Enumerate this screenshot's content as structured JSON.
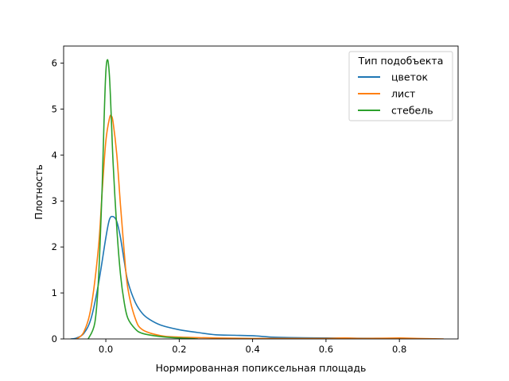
{
  "chart_data": {
    "type": "line",
    "xlabel": "Нормированная попиксельная площадь",
    "ylabel": "Плотность",
    "xlim": [
      -0.115,
      0.96
    ],
    "ylim": [
      0,
      6.37
    ],
    "x_ticks": [
      0.0,
      0.2,
      0.4,
      0.6,
      0.8
    ],
    "x_tick_labels": [
      "0.0",
      "0.2",
      "0.4",
      "0.6",
      "0.8"
    ],
    "y_ticks": [
      0,
      1,
      2,
      3,
      4,
      5,
      6
    ],
    "y_tick_labels": [
      "0",
      "1",
      "2",
      "3",
      "4",
      "5",
      "6"
    ],
    "grid": false,
    "legend": {
      "title": "Тип подобъекта",
      "position": "top-right"
    },
    "series": [
      {
        "name": "цветок",
        "color": "#1f77b4",
        "points": [
          [
            -0.095,
            0.0
          ],
          [
            -0.08,
            0.02
          ],
          [
            -0.06,
            0.12
          ],
          [
            -0.04,
            0.45
          ],
          [
            -0.02,
            1.2
          ],
          [
            0.0,
            2.2
          ],
          [
            0.01,
            2.6
          ],
          [
            0.02,
            2.66
          ],
          [
            0.03,
            2.55
          ],
          [
            0.04,
            2.2
          ],
          [
            0.05,
            1.7
          ],
          [
            0.06,
            1.25
          ],
          [
            0.08,
            0.8
          ],
          [
            0.1,
            0.55
          ],
          [
            0.12,
            0.42
          ],
          [
            0.15,
            0.3
          ],
          [
            0.2,
            0.2
          ],
          [
            0.25,
            0.14
          ],
          [
            0.3,
            0.09
          ],
          [
            0.35,
            0.08
          ],
          [
            0.4,
            0.07
          ],
          [
            0.45,
            0.04
          ],
          [
            0.5,
            0.03
          ],
          [
            0.6,
            0.02
          ],
          [
            0.7,
            0.015
          ],
          [
            0.8,
            0.01
          ],
          [
            0.9,
            0.0
          ]
        ]
      },
      {
        "name": "лист",
        "color": "#ff7f0e",
        "points": [
          [
            -0.08,
            0.0
          ],
          [
            -0.06,
            0.15
          ],
          [
            -0.04,
            0.7
          ],
          [
            -0.02,
            2.0
          ],
          [
            -0.01,
            3.2
          ],
          [
            0.0,
            4.3
          ],
          [
            0.01,
            4.8
          ],
          [
            0.015,
            4.85
          ],
          [
            0.02,
            4.7
          ],
          [
            0.03,
            4.0
          ],
          [
            0.04,
            2.9
          ],
          [
            0.05,
            1.9
          ],
          [
            0.06,
            1.1
          ],
          [
            0.08,
            0.45
          ],
          [
            0.1,
            0.2
          ],
          [
            0.15,
            0.07
          ],
          [
            0.2,
            0.04
          ],
          [
            0.3,
            0.02
          ],
          [
            0.4,
            0.01
          ],
          [
            0.5,
            0.01
          ],
          [
            0.6,
            0.01
          ],
          [
            0.65,
            0.02
          ],
          [
            0.7,
            0.01
          ],
          [
            0.8,
            0.02
          ],
          [
            0.85,
            0.01
          ],
          [
            0.92,
            0.0
          ]
        ]
      },
      {
        "name": "стебель",
        "color": "#2ca02c",
        "points": [
          [
            -0.048,
            0.0
          ],
          [
            -0.03,
            0.35
          ],
          [
            -0.02,
            1.3
          ],
          [
            -0.01,
            3.3
          ],
          [
            -0.005,
            4.7
          ],
          [
            0.0,
            5.8
          ],
          [
            0.005,
            6.07
          ],
          [
            0.01,
            5.7
          ],
          [
            0.015,
            4.8
          ],
          [
            0.02,
            3.8
          ],
          [
            0.03,
            2.4
          ],
          [
            0.04,
            1.4
          ],
          [
            0.05,
            0.8
          ],
          [
            0.06,
            0.45
          ],
          [
            0.08,
            0.22
          ],
          [
            0.1,
            0.12
          ],
          [
            0.15,
            0.05
          ],
          [
            0.2,
            0.02
          ],
          [
            0.25,
            0.0
          ]
        ]
      }
    ]
  }
}
